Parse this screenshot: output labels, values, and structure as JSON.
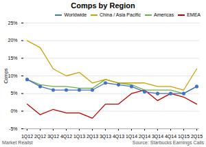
{
  "chart_data": {
    "type": "line",
    "title": "Comps by Region",
    "ylabel": "Comps",
    "watermark": "Market Realist",
    "source": "Source: Starbucks Earnings Calls",
    "categories": [
      "1Q12",
      "2Q12",
      "3Q12",
      "4Q12",
      "1Q13",
      "2Q13",
      "3Q13",
      "4Q13",
      "1Q14",
      "2Q14",
      "3Q14",
      "4Q14",
      "1Q15",
      "2Q15"
    ],
    "series": [
      {
        "name": "Worldwide",
        "color": "#4472C4",
        "marker": "circle",
        "values": [
          9,
          7,
          6,
          6,
          6,
          6,
          8,
          7.5,
          7,
          5.5,
          5,
          5,
          5,
          7
        ]
      },
      {
        "name": "China / Asia Pacific",
        "color": "#C8A400",
        "values": [
          20,
          18,
          12,
          10,
          11,
          8,
          9,
          8,
          8,
          8,
          7,
          7,
          6,
          12
        ]
      },
      {
        "name": "Americas",
        "color": "#70AD47",
        "values": [
          9,
          7.5,
          7,
          7,
          6.5,
          6.5,
          9,
          8,
          7.5,
          6,
          6,
          6,
          5,
          7
        ]
      },
      {
        "name": "EMEA",
        "color": "#C00000",
        "values": [
          2,
          -1,
          0.5,
          -0.5,
          -0.5,
          -2,
          2,
          2,
          5,
          6,
          3,
          5,
          4,
          2
        ]
      }
    ],
    "ylim": [
      -5,
      25
    ],
    "yticks": [
      {
        "value": -5,
        "label": "-5%"
      },
      {
        "value": 0,
        "label": "0%"
      },
      {
        "value": 5,
        "label": "5%"
      },
      {
        "value": 10,
        "label": "10%"
      },
      {
        "value": 15,
        "label": "15%"
      },
      {
        "value": 20,
        "label": "20%"
      },
      {
        "value": 25,
        "label": "25%"
      }
    ],
    "grid": true,
    "legend": "upper right"
  }
}
